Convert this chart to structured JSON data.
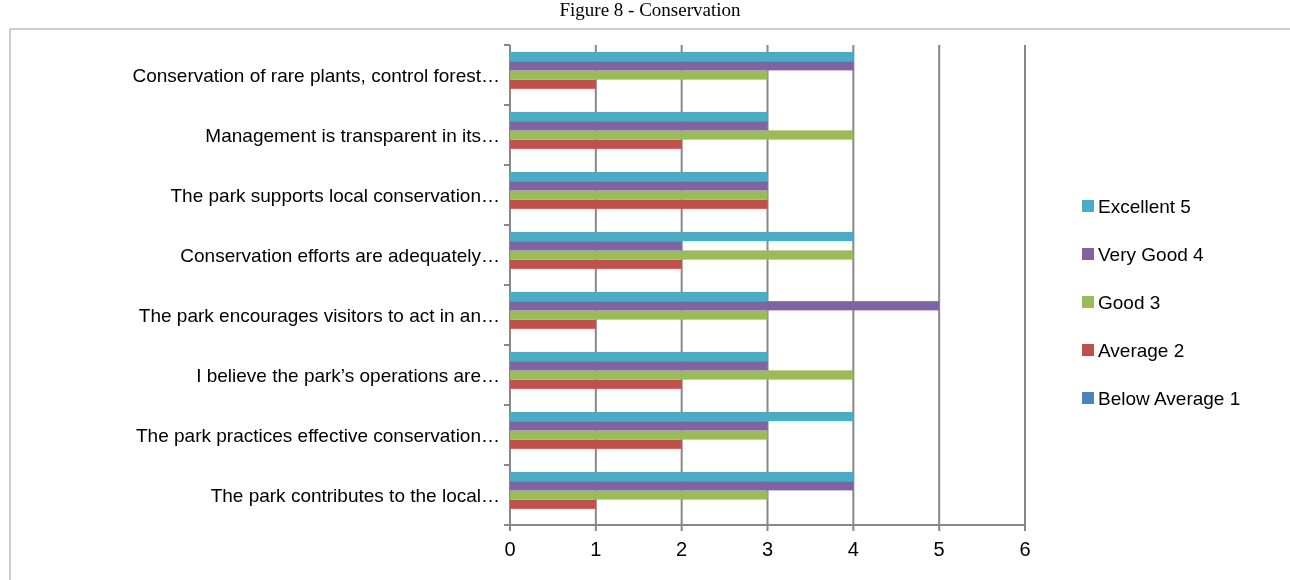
{
  "chart_data": {
    "type": "bar",
    "orientation": "horizontal",
    "title": "Figure 8 - Conservation",
    "categories": [
      "Conservation of rare plants, control forest…",
      "Management is transparent in its…",
      "The park supports local conservation…",
      "Conservation efforts are adequately…",
      "The park encourages visitors to act in an…",
      "I believe the park’s operations are…",
      "The park practices effective conservation…",
      "The park contributes to the local…"
    ],
    "series": [
      {
        "name": "Below Average 1",
        "color": "#4f81bd",
        "values": [
          0,
          0,
          0,
          0,
          0,
          0,
          0,
          0
        ]
      },
      {
        "name": "Average 2",
        "color": "#c0504d",
        "values": [
          1,
          2,
          3,
          2,
          1,
          2,
          2,
          1
        ]
      },
      {
        "name": "Good 3",
        "color": "#9bbb59",
        "values": [
          3,
          4,
          3,
          4,
          3,
          4,
          3,
          3
        ]
      },
      {
        "name": "Very Good 4",
        "color": "#8064a2",
        "values": [
          4,
          3,
          3,
          2,
          5,
          3,
          3,
          4
        ]
      },
      {
        "name": "Excellent 5",
        "color": "#4bacc6",
        "values": [
          4,
          3,
          3,
          4,
          3,
          3,
          4,
          4
        ]
      }
    ],
    "xlim": [
      0,
      6
    ],
    "xticks": [
      0,
      1,
      2,
      3,
      4,
      5,
      6
    ],
    "grid": "x",
    "legend": "right"
  }
}
